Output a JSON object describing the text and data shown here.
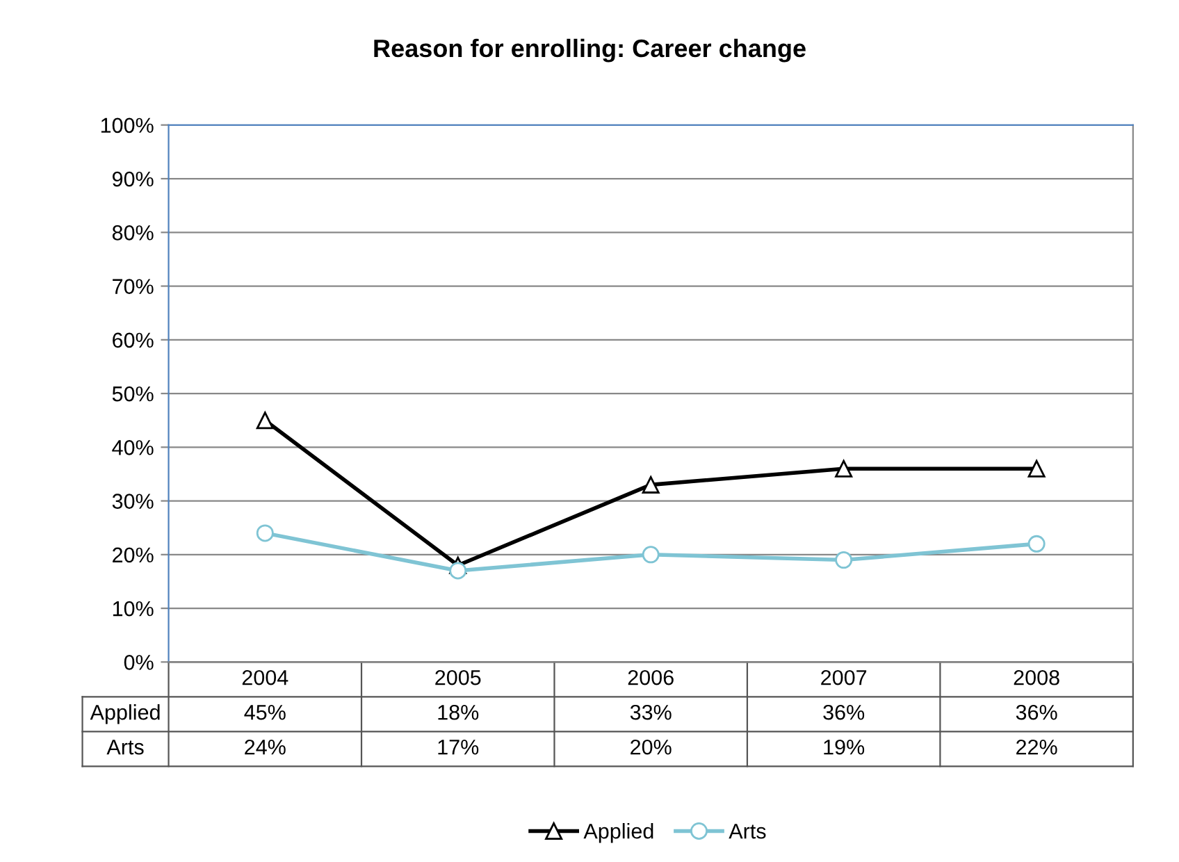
{
  "chart_data": {
    "type": "line",
    "title": "Reason for enrolling: Career change",
    "categories": [
      "2004",
      "2005",
      "2006",
      "2007",
      "2008"
    ],
    "series": [
      {
        "name": "Applied",
        "color": "#000000",
        "marker": "triangle",
        "values": [
          45,
          18,
          33,
          36,
          36
        ],
        "value_labels": [
          "45%",
          "18%",
          "33%",
          "36%",
          "36%"
        ]
      },
      {
        "name": "Arts",
        "color": "#7fc4d4",
        "marker": "circle",
        "values": [
          24,
          17,
          20,
          19,
          22
        ],
        "value_labels": [
          "24%",
          "17%",
          "20%",
          "19%",
          "22%"
        ]
      }
    ],
    "ylim": [
      0,
      100
    ],
    "yticks": [
      {
        "value": 0,
        "label": "0%"
      },
      {
        "value": 10,
        "label": "10%"
      },
      {
        "value": 20,
        "label": "20%"
      },
      {
        "value": 30,
        "label": "30%"
      },
      {
        "value": 40,
        "label": "40%"
      },
      {
        "value": 50,
        "label": "50%"
      },
      {
        "value": 60,
        "label": "60%"
      },
      {
        "value": 70,
        "label": "70%"
      },
      {
        "value": 80,
        "label": "80%"
      },
      {
        "value": 90,
        "label": "90%"
      },
      {
        "value": 100,
        "label": "100%"
      }
    ],
    "grid": "y",
    "legend": "bottom",
    "line_style": "solid"
  }
}
